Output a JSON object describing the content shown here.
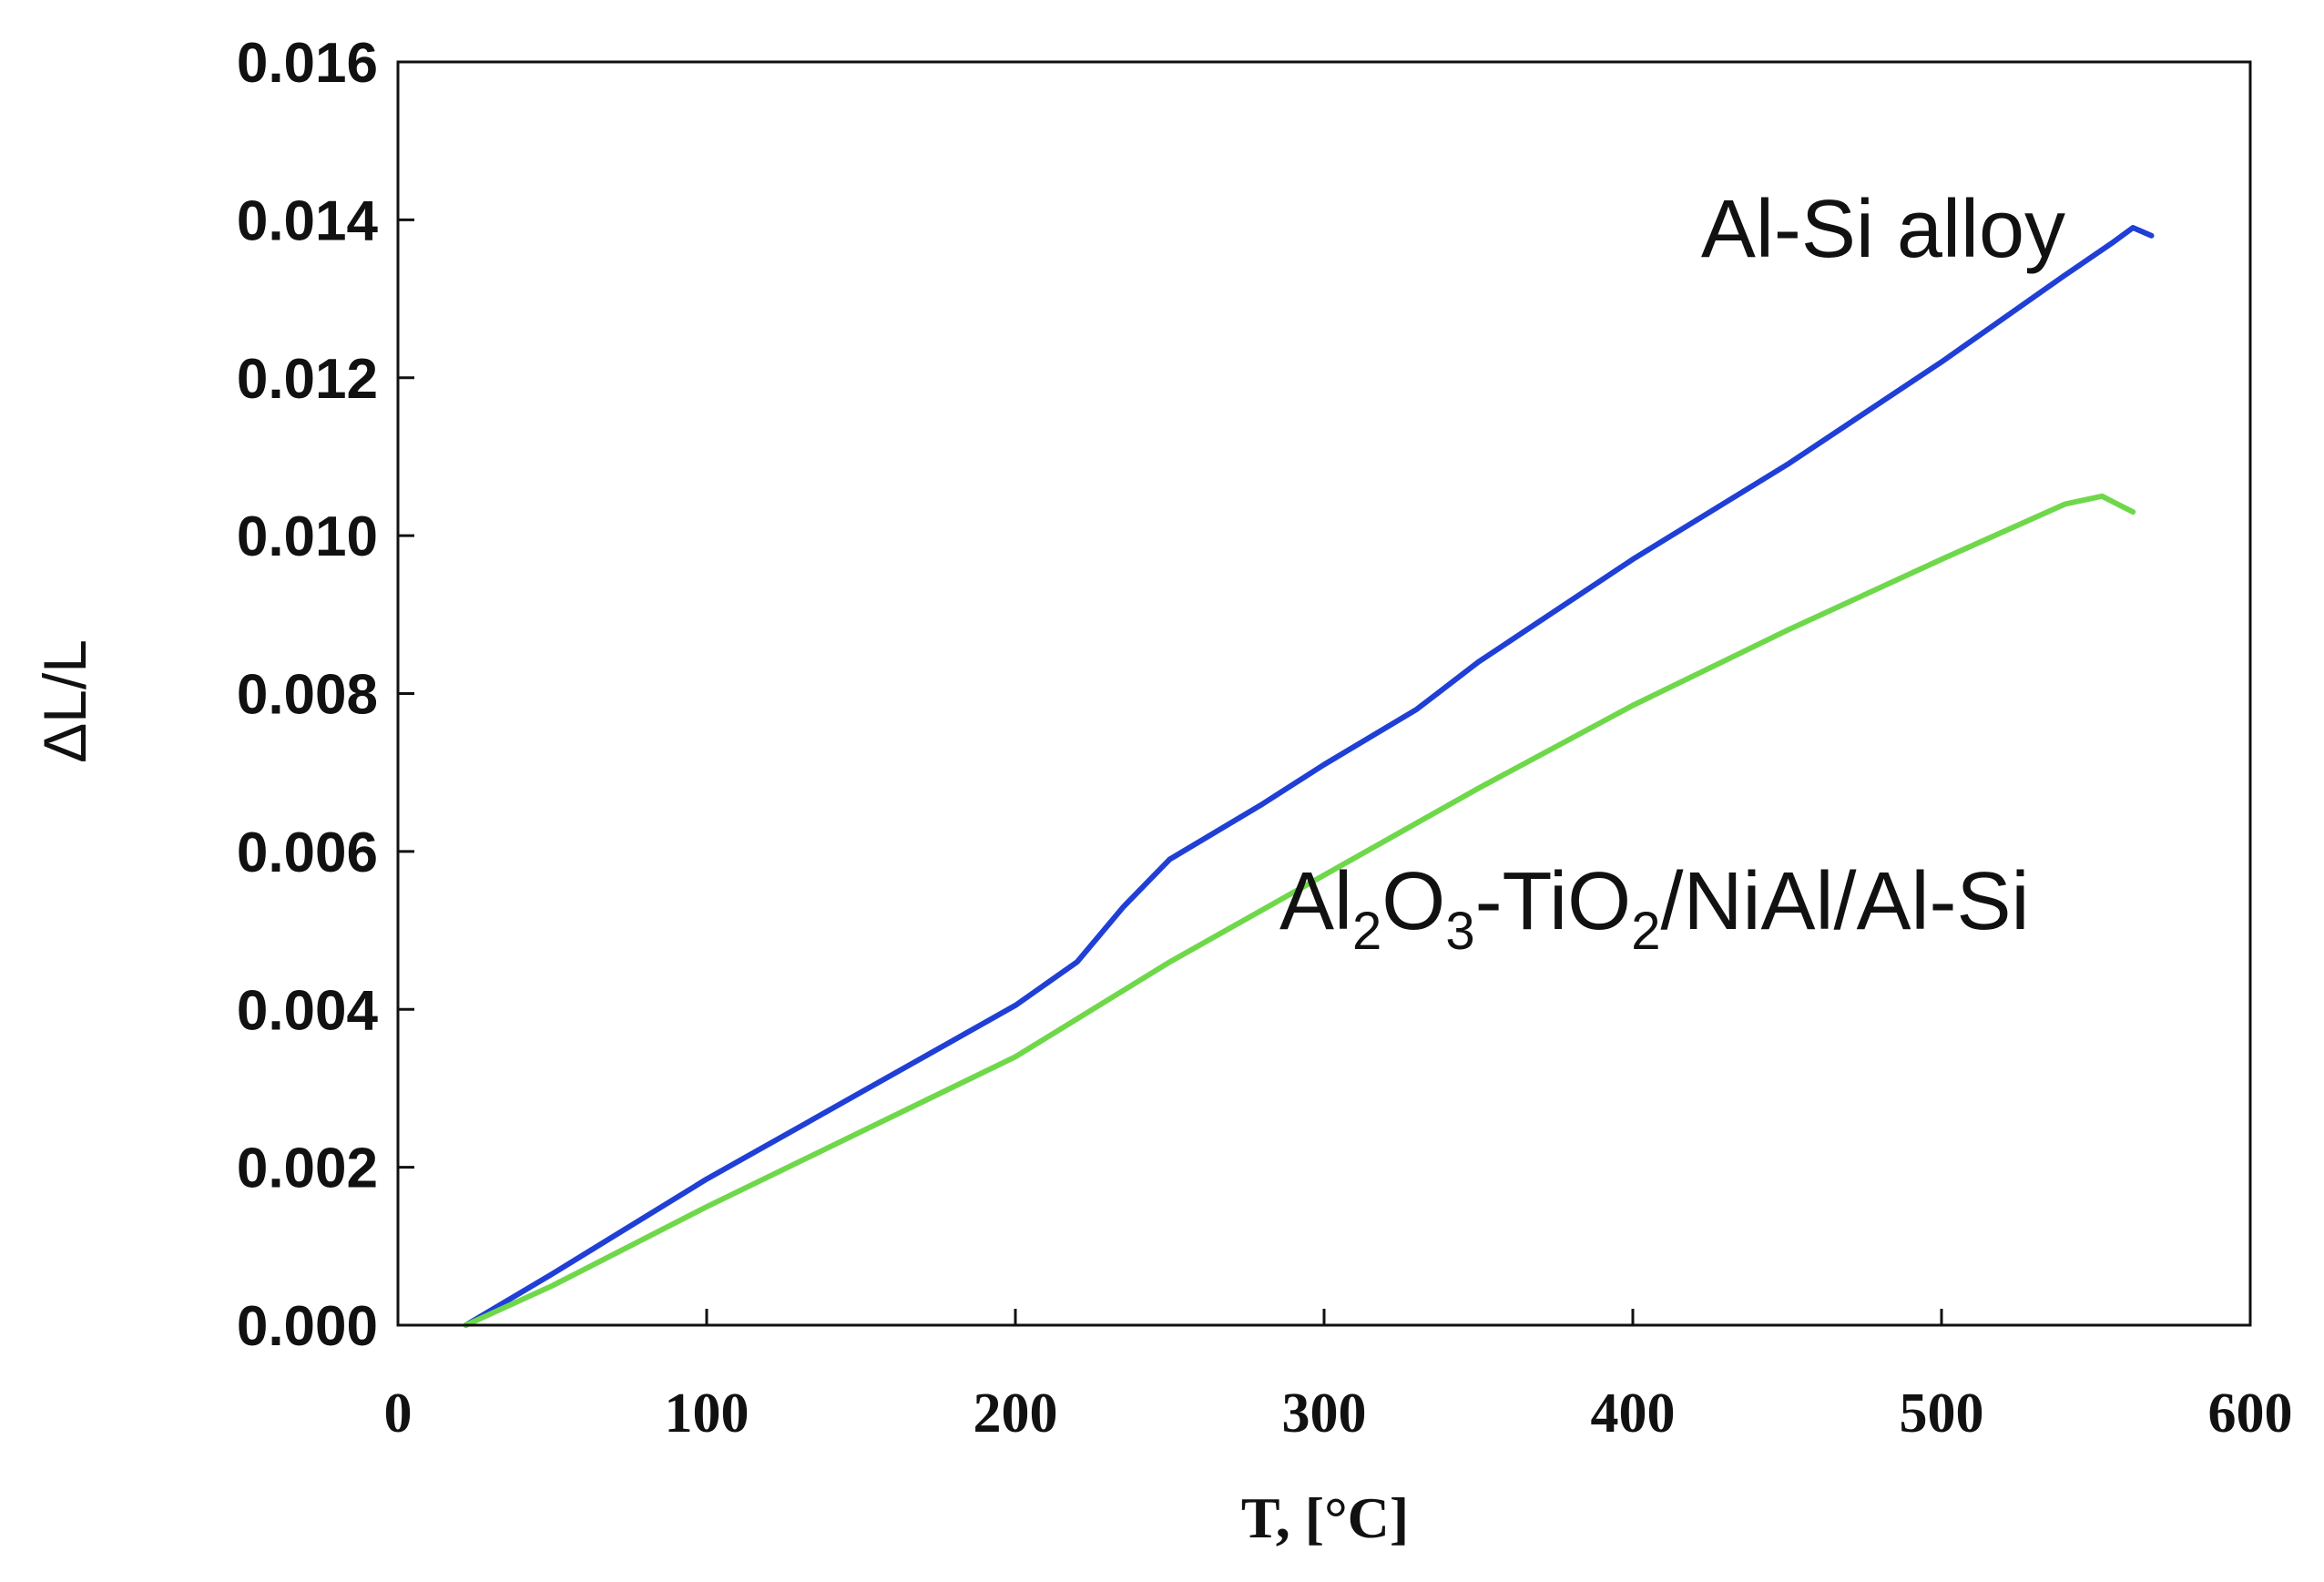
{
  "chart_data": {
    "type": "line",
    "title": "",
    "xlabel": "T, [°C]",
    "ylabel": "ΔL/L",
    "xlim": [
      0,
      600
    ],
    "ylim": [
      0,
      0.016
    ],
    "x_ticks": [
      "0",
      "100",
      "200",
      "300",
      "400",
      "500",
      "600"
    ],
    "y_ticks": [
      "0.000",
      "0.002",
      "0.004",
      "0.006",
      "0.008",
      "0.010",
      "0.012",
      "0.014",
      "0.016"
    ],
    "grid": false,
    "series": [
      {
        "name": "Al-Si alloy",
        "color": "#1f3fd6",
        "x": [
          22,
          50,
          100,
          150,
          200,
          220,
          235,
          250,
          280,
          300,
          330,
          350,
          400,
          450,
          500,
          540,
          555,
          562,
          568
        ],
        "y": [
          0,
          0.00065,
          0.00185,
          0.00295,
          0.00405,
          0.0046,
          0.0053,
          0.0059,
          0.0066,
          0.0071,
          0.0078,
          0.0084,
          0.0097,
          0.0109,
          0.0122,
          0.0133,
          0.0137,
          0.0139,
          0.0138
        ]
      },
      {
        "name": "Al2O3-TiO2/NiAl/Al-Si",
        "color": "#6fd84a",
        "x": [
          22,
          50,
          100,
          150,
          200,
          250,
          300,
          350,
          400,
          450,
          500,
          540,
          552,
          557,
          562
        ],
        "y": [
          0,
          0.0005,
          0.0015,
          0.00245,
          0.0034,
          0.0046,
          0.0057,
          0.0068,
          0.00785,
          0.0088,
          0.0097,
          0.0104,
          0.0105,
          0.0104,
          0.0103
        ]
      }
    ],
    "annotations": [
      {
        "text": "Al-Si alloy",
        "series": 0
      },
      {
        "text": "Al2O3-TiO2/NiAl/Al-Si",
        "series": 1,
        "parts": [
          {
            "t": "Al"
          },
          {
            "t": "2",
            "sub": true
          },
          {
            "t": "O"
          },
          {
            "t": "3",
            "sub": true
          },
          {
            "t": "-TiO"
          },
          {
            "t": "2",
            "sub": true
          },
          {
            "t": "/NiAl/Al-Si"
          }
        ]
      }
    ]
  }
}
